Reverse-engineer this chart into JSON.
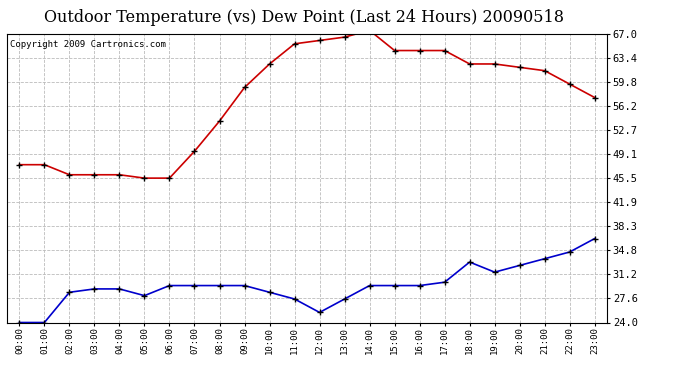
{
  "title": "Outdoor Temperature (vs) Dew Point (Last 24 Hours) 20090518",
  "copyright": "Copyright 2009 Cartronics.com",
  "x_labels": [
    "00:00",
    "01:00",
    "02:00",
    "03:00",
    "04:00",
    "05:00",
    "06:00",
    "07:00",
    "08:00",
    "09:00",
    "10:00",
    "11:00",
    "12:00",
    "13:00",
    "14:00",
    "15:00",
    "16:00",
    "17:00",
    "18:00",
    "19:00",
    "20:00",
    "21:00",
    "22:00",
    "23:00"
  ],
  "temp_data": [
    47.5,
    47.5,
    46.0,
    46.0,
    46.0,
    45.5,
    45.5,
    49.5,
    54.0,
    59.0,
    62.5,
    65.5,
    66.0,
    66.5,
    67.5,
    64.5,
    64.5,
    64.5,
    62.5,
    62.5,
    62.0,
    61.5,
    59.5,
    57.5
  ],
  "dew_data": [
    24.0,
    24.0,
    28.5,
    29.0,
    29.0,
    28.0,
    29.5,
    29.5,
    29.5,
    29.5,
    28.5,
    27.5,
    25.5,
    27.5,
    29.5,
    29.5,
    29.5,
    30.0,
    33.0,
    31.5,
    32.5,
    33.5,
    34.5,
    36.5
  ],
  "y_ticks": [
    24.0,
    27.6,
    31.2,
    34.8,
    38.3,
    41.9,
    45.5,
    49.1,
    52.7,
    56.2,
    59.8,
    63.4,
    67.0
  ],
  "y_min": 24.0,
  "y_max": 67.0,
  "temp_color": "#cc0000",
  "dew_color": "#0000cc",
  "grid_color": "#bbbbbb",
  "bg_color": "#ffffff",
  "title_fontsize": 11.5,
  "copyright_fontsize": 6.5
}
